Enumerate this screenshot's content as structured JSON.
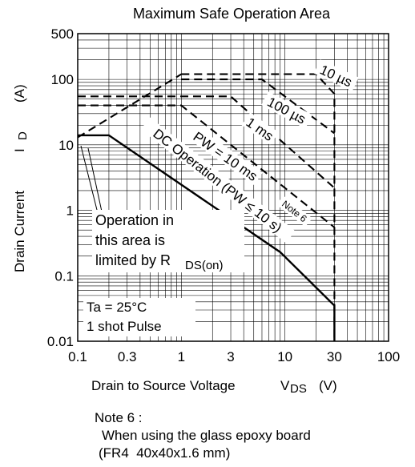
{
  "chart_data": {
    "type": "line",
    "title": "Maximum Safe Operation Area",
    "xlabel": "Drain to Source Voltage",
    "xlabel_symbol": "V",
    "xlabel_sub": "DS",
    "xlabel_unit": "(V)",
    "ylabel": "Drain Current",
    "ylabel_symbol": "I",
    "ylabel_sub": "D",
    "ylabel_unit": "(A)",
    "x_scale": "log",
    "y_scale": "log",
    "xlim": [
      0.1,
      100
    ],
    "ylim": [
      0.01,
      500
    ],
    "grid": true,
    "x_ticks": [
      {
        "value": 0.1,
        "label": "0.1"
      },
      {
        "value": 0.3,
        "label": "0.3"
      },
      {
        "value": 1,
        "label": "1"
      },
      {
        "value": 3,
        "label": "3"
      },
      {
        "value": 10,
        "label": "10"
      },
      {
        "value": 30,
        "label": "30"
      },
      {
        "value": 100,
        "label": "100"
      }
    ],
    "y_ticks": [
      {
        "value": 0.01,
        "label": "0.01"
      },
      {
        "value": 0.1,
        "label": "0.1"
      },
      {
        "value": 1,
        "label": "1"
      },
      {
        "value": 10,
        "label": "10"
      },
      {
        "value": 100,
        "label": "100"
      },
      {
        "value": 500,
        "label": "500"
      }
    ],
    "series": [
      {
        "name": "10 µs",
        "style": "dashed",
        "points": [
          [
            1,
            120
          ],
          [
            20,
            120
          ],
          [
            30,
            60
          ],
          [
            30,
            0.01
          ]
        ]
      },
      {
        "name": "100 µs",
        "style": "dashed",
        "points": [
          [
            1,
            100
          ],
          [
            6,
            100
          ],
          [
            30,
            15
          ]
        ]
      },
      {
        "name": "1 ms",
        "style": "dashed",
        "points": [
          [
            0.1,
            55
          ],
          [
            1,
            55
          ],
          [
            3,
            55
          ],
          [
            30,
            2.2
          ]
        ]
      },
      {
        "name": "PW = 10 ms",
        "style": "dashed",
        "points": [
          [
            0.1,
            40
          ],
          [
            1,
            40
          ],
          [
            30,
            0.55
          ]
        ]
      },
      {
        "name": "DC Operation (PW ≤ 10 s)",
        "style": "solid",
        "points": [
          [
            0.1,
            14
          ],
          [
            0.2,
            14
          ],
          [
            9,
            0.23
          ],
          [
            30,
            0.035
          ],
          [
            30,
            0.01
          ]
        ]
      },
      {
        "name": "",
        "style": "dashed",
        "points": [
          [
            0.1,
            13
          ],
          [
            1,
            120
          ]
        ]
      }
    ],
    "annotations": {
      "rds_limit": [
        "Operation in",
        "this area is",
        "limited by R"
      ],
      "rds_sub": "DS(on)",
      "ta": "Ta = 25°C",
      "pulse": "1 shot Pulse",
      "note_ref": "Note 6"
    }
  },
  "note": {
    "title": "Note 6 :",
    "line1": "When using the glass epoxy board",
    "line2": "(FR4  40x40x1.6 mm)"
  }
}
